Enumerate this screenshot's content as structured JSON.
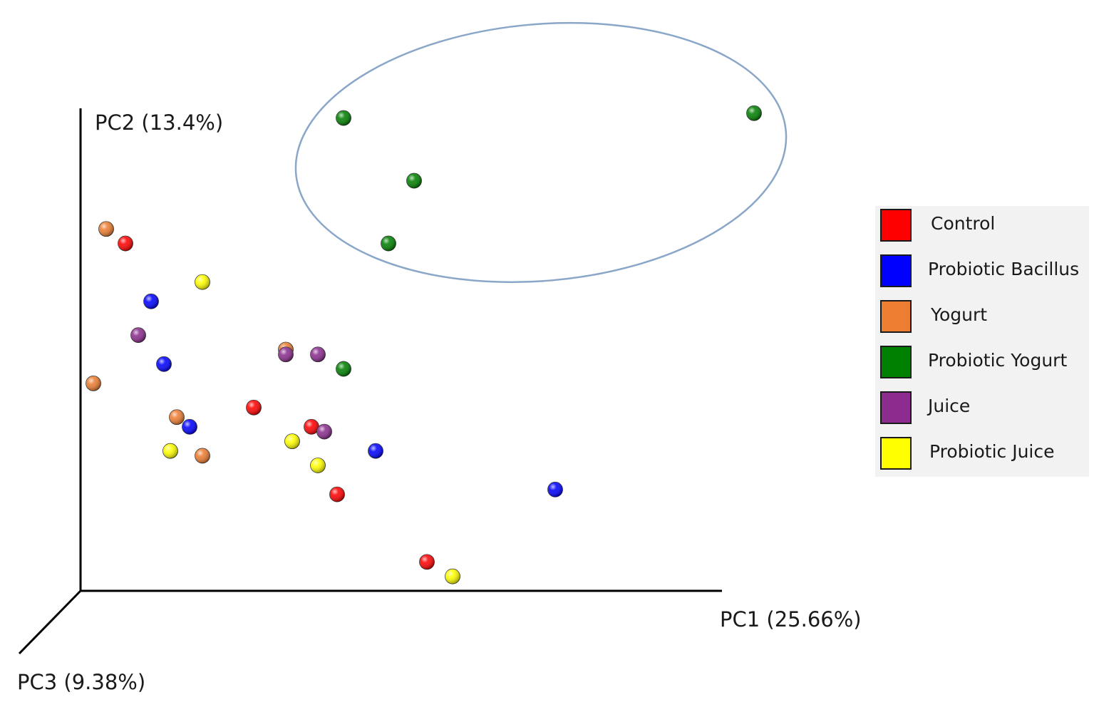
{
  "chart_data": {
    "type": "scatter",
    "projection": "3d",
    "axes": {
      "x": "PC1 (25.66%)",
      "y": "PC2 (13.4%)",
      "z": "PC3 (9.38%)"
    },
    "legend_position": "right",
    "highlight": "ellipse around Probiotic Yogurt cluster",
    "series": [
      {
        "name": "Control",
        "color": "#ff0000",
        "points": [
          [
            0.07,
            0.72
          ],
          [
            0.27,
            0.38
          ],
          [
            0.36,
            0.34
          ],
          [
            0.4,
            0.2
          ],
          [
            0.54,
            0.06
          ]
        ]
      },
      {
        "name": "Probiotic Bacillus",
        "color": "#0000ff",
        "points": [
          [
            0.11,
            0.6
          ],
          [
            0.13,
            0.47
          ],
          [
            0.17,
            0.34
          ],
          [
            0.46,
            0.29
          ],
          [
            0.74,
            0.21
          ]
        ]
      },
      {
        "name": "Yogurt",
        "color": "#ed7d31",
        "points": [
          [
            0.04,
            0.75
          ],
          [
            0.02,
            0.43
          ],
          [
            0.15,
            0.36
          ],
          [
            0.19,
            0.28
          ],
          [
            0.32,
            0.5
          ]
        ]
      },
      {
        "name": "Probiotic Yogurt",
        "color": "#008000",
        "points": [
          [
            0.41,
            0.46
          ],
          [
            0.41,
            0.98
          ],
          [
            0.52,
            0.85
          ],
          [
            0.48,
            0.72
          ],
          [
            1.05,
            0.99
          ]
        ]
      },
      {
        "name": "Juice",
        "color": "#8b2c8e",
        "points": [
          [
            0.09,
            0.53
          ],
          [
            0.32,
            0.49
          ],
          [
            0.37,
            0.49
          ],
          [
            0.38,
            0.33
          ]
        ]
      },
      {
        "name": "Probiotic Juice",
        "color": "#ffff00",
        "points": [
          [
            0.19,
            0.64
          ],
          [
            0.14,
            0.29
          ],
          [
            0.33,
            0.31
          ],
          [
            0.37,
            0.26
          ],
          [
            0.58,
            0.03
          ]
        ]
      }
    ]
  }
}
